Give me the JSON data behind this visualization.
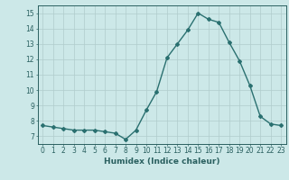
{
  "x": [
    0,
    1,
    2,
    3,
    4,
    5,
    6,
    7,
    8,
    9,
    10,
    11,
    12,
    13,
    14,
    15,
    16,
    17,
    18,
    19,
    20,
    21,
    22,
    23
  ],
  "y": [
    7.7,
    7.6,
    7.5,
    7.4,
    7.4,
    7.4,
    7.3,
    7.2,
    6.8,
    7.4,
    8.7,
    9.9,
    12.1,
    13.0,
    13.9,
    15.0,
    14.6,
    14.4,
    13.1,
    11.9,
    10.3,
    8.3,
    7.8,
    7.7
  ],
  "line_color": "#2a7070",
  "marker": "D",
  "marker_size": 2.0,
  "background_color": "#cce8e8",
  "grid_color": "#b0cccc",
  "xlabel": "Humidex (Indice chaleur)",
  "ylabel": "",
  "ylim": [
    6.5,
    15.5
  ],
  "xlim": [
    -0.5,
    23.5
  ],
  "yticks": [
    7,
    8,
    9,
    10,
    11,
    12,
    13,
    14,
    15
  ],
  "xticks": [
    0,
    1,
    2,
    3,
    4,
    5,
    6,
    7,
    8,
    9,
    10,
    11,
    12,
    13,
    14,
    15,
    16,
    17,
    18,
    19,
    20,
    21,
    22,
    23
  ],
  "tick_color": "#2a6060",
  "label_fontsize": 6.5,
  "tick_fontsize": 5.5,
  "spine_color": "#2a6060",
  "linewidth": 1.0
}
